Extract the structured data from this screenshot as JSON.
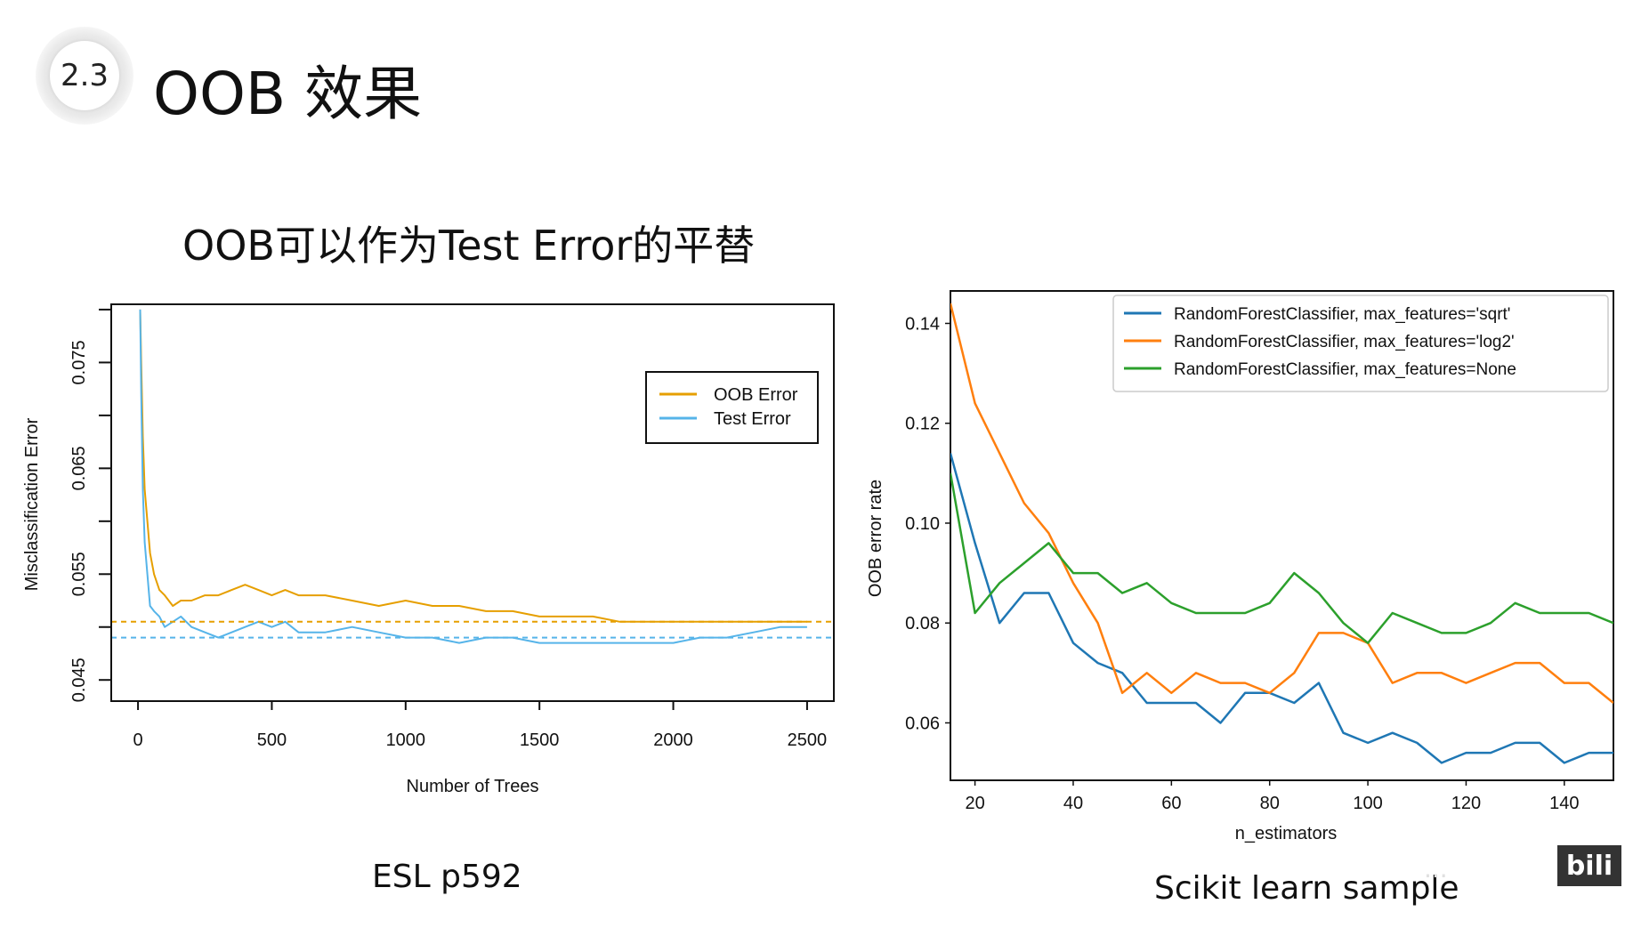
{
  "header": {
    "section_number": "2.3",
    "title": "OOB 效果",
    "subtitle": "OOB可以作为Test Error的平替"
  },
  "captions": {
    "left": "ESL p592",
    "right": "Scikit learn sample"
  },
  "watermark": "...",
  "logo": "bili",
  "chart_data": [
    {
      "type": "line",
      "title": "",
      "xlabel": "Number of Trees",
      "ylabel": "Misclassification Error",
      "xlim": [
        -100,
        2600
      ],
      "ylim": [
        0.043,
        0.0805
      ],
      "xticks": [
        0,
        500,
        1000,
        1500,
        2000,
        2500
      ],
      "xtick_labels": [
        "0",
        "500",
        "1000",
        "1500",
        "2000",
        "2500"
      ],
      "yticks": [
        0.045,
        0.055,
        0.065,
        0.075
      ],
      "ytick_labels": [
        "0.045",
        "0.055",
        "0.065",
        "0.075"
      ],
      "grid": false,
      "legend_position": "top-right",
      "series": [
        {
          "name": "OOB Error",
          "color": "#E69F00",
          "x": [
            8,
            12,
            18,
            25,
            35,
            45,
            60,
            80,
            100,
            130,
            160,
            200,
            250,
            300,
            350,
            400,
            450,
            500,
            550,
            600,
            700,
            800,
            900,
            1000,
            1100,
            1200,
            1300,
            1400,
            1500,
            1600,
            1700,
            1800,
            1900,
            2000,
            2100,
            2200,
            2300,
            2400,
            2500
          ],
          "values": [
            0.08,
            0.075,
            0.068,
            0.063,
            0.06,
            0.057,
            0.055,
            0.0535,
            0.053,
            0.052,
            0.0525,
            0.0525,
            0.053,
            0.053,
            0.0535,
            0.054,
            0.0535,
            0.053,
            0.0535,
            0.053,
            0.053,
            0.0525,
            0.052,
            0.0525,
            0.052,
            0.052,
            0.0515,
            0.0515,
            0.051,
            0.051,
            0.051,
            0.0505,
            0.0505,
            0.0505,
            0.0505,
            0.0505,
            0.0505,
            0.0505,
            0.0505
          ]
        },
        {
          "name": "Test Error",
          "color": "#56B4E9",
          "x": [
            8,
            12,
            18,
            25,
            35,
            45,
            60,
            80,
            100,
            130,
            160,
            200,
            250,
            300,
            350,
            400,
            450,
            500,
            550,
            600,
            700,
            800,
            900,
            1000,
            1100,
            1200,
            1300,
            1400,
            1500,
            1600,
            1700,
            1800,
            1900,
            2000,
            2100,
            2200,
            2300,
            2400,
            2500
          ],
          "values": [
            0.08,
            0.072,
            0.063,
            0.058,
            0.055,
            0.052,
            0.0515,
            0.051,
            0.05,
            0.0505,
            0.051,
            0.05,
            0.0495,
            0.049,
            0.0495,
            0.05,
            0.0505,
            0.05,
            0.0505,
            0.0495,
            0.0495,
            0.05,
            0.0495,
            0.049,
            0.049,
            0.0485,
            0.049,
            0.049,
            0.0485,
            0.0485,
            0.0485,
            0.0485,
            0.0485,
            0.0485,
            0.049,
            0.049,
            0.0495,
            0.05,
            0.05
          ]
        },
        {
          "name": "",
          "style": "dashed",
          "color": "#E69F00",
          "x": [
            -100,
            2600
          ],
          "values": [
            0.0505,
            0.0505
          ]
        },
        {
          "name": "",
          "style": "dashed",
          "color": "#56B4E9",
          "x": [
            -100,
            2600
          ],
          "values": [
            0.049,
            0.049
          ]
        }
      ]
    },
    {
      "type": "line",
      "title": "",
      "xlabel": "n_estimators",
      "ylabel": "OOB error rate",
      "xlim": [
        15,
        150
      ],
      "ylim": [
        0.0485,
        0.1465
      ],
      "xticks": [
        20,
        40,
        60,
        80,
        100,
        120,
        140
      ],
      "xtick_labels": [
        "20",
        "40",
        "60",
        "80",
        "100",
        "120",
        "140"
      ],
      "yticks": [
        0.06,
        0.08,
        0.1,
        0.12,
        0.14
      ],
      "ytick_labels": [
        "0.06",
        "0.08",
        "0.10",
        "0.12",
        "0.14"
      ],
      "grid": false,
      "legend_position": "top-right",
      "series": [
        {
          "name": "RandomForestClassifier, max_features='sqrt'",
          "color": "#1f77b4",
          "x": [
            15,
            20,
            25,
            30,
            35,
            40,
            45,
            50,
            55,
            60,
            65,
            70,
            75,
            80,
            85,
            90,
            95,
            100,
            105,
            110,
            115,
            120,
            125,
            130,
            135,
            140,
            145,
            150
          ],
          "values": [
            0.114,
            0.096,
            0.08,
            0.086,
            0.086,
            0.076,
            0.072,
            0.07,
            0.064,
            0.064,
            0.064,
            0.06,
            0.066,
            0.066,
            0.064,
            0.068,
            0.058,
            0.056,
            0.058,
            0.056,
            0.052,
            0.054,
            0.054,
            0.056,
            0.056,
            0.052,
            0.054,
            0.054
          ]
        },
        {
          "name": "RandomForestClassifier, max_features='log2'",
          "color": "#ff7f0e",
          "x": [
            15,
            20,
            25,
            30,
            35,
            40,
            45,
            50,
            55,
            60,
            65,
            70,
            75,
            80,
            85,
            90,
            95,
            100,
            105,
            110,
            115,
            120,
            125,
            130,
            135,
            140,
            145,
            150
          ],
          "values": [
            0.144,
            0.124,
            0.114,
            0.104,
            0.098,
            0.088,
            0.08,
            0.066,
            0.07,
            0.066,
            0.07,
            0.068,
            0.068,
            0.066,
            0.07,
            0.078,
            0.078,
            0.076,
            0.068,
            0.07,
            0.07,
            0.068,
            0.07,
            0.072,
            0.072,
            0.068,
            0.068,
            0.064
          ]
        },
        {
          "name": "RandomForestClassifier, max_features=None",
          "color": "#2ca02c",
          "x": [
            15,
            20,
            25,
            30,
            35,
            40,
            45,
            50,
            55,
            60,
            65,
            70,
            75,
            80,
            85,
            90,
            95,
            100,
            105,
            110,
            115,
            120,
            125,
            130,
            135,
            140,
            145,
            150
          ],
          "values": [
            0.11,
            0.082,
            0.088,
            0.092,
            0.096,
            0.09,
            0.09,
            0.086,
            0.088,
            0.084,
            0.082,
            0.082,
            0.082,
            0.084,
            0.09,
            0.086,
            0.08,
            0.076,
            0.082,
            0.08,
            0.078,
            0.078,
            0.08,
            0.084,
            0.082,
            0.082,
            0.082,
            0.08
          ]
        }
      ]
    }
  ]
}
